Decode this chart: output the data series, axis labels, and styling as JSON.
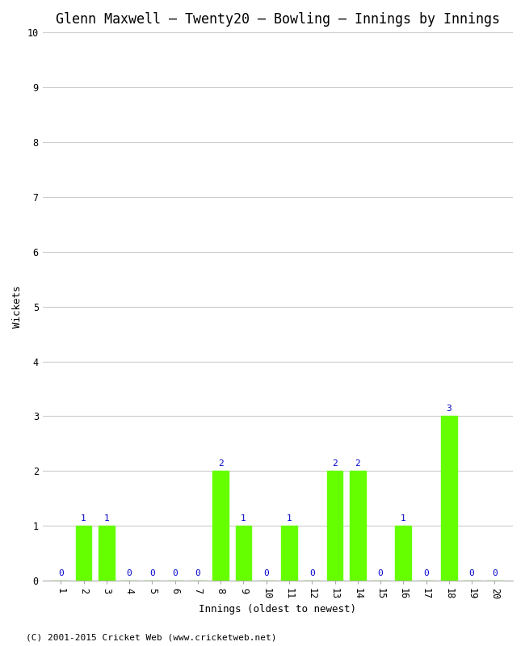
{
  "title": "Glenn Maxwell – Twenty20 – Bowling – Innings by Innings",
  "xlabel": "Innings (oldest to newest)",
  "ylabel": "Wickets",
  "footnote": "(C) 2001-2015 Cricket Web (www.cricketweb.net)",
  "innings": [
    1,
    2,
    3,
    4,
    5,
    6,
    7,
    8,
    9,
    10,
    11,
    12,
    13,
    14,
    15,
    16,
    17,
    18,
    19,
    20
  ],
  "wickets": [
    0,
    1,
    1,
    0,
    0,
    0,
    0,
    2,
    1,
    0,
    1,
    0,
    2,
    2,
    0,
    1,
    0,
    3,
    0,
    0
  ],
  "bar_color": "#66ff00",
  "bar_edge_color": "#66ff00",
  "label_color": "#0000cc",
  "background_color": "#ffffff",
  "grid_color": "#cccccc",
  "axis_color": "#aaaaaa",
  "title_color": "#000000",
  "ylim": [
    0,
    10
  ],
  "yticks": [
    0,
    1,
    2,
    3,
    4,
    5,
    6,
    7,
    8,
    9,
    10
  ],
  "title_fontsize": 12,
  "label_fontsize": 9,
  "tick_fontsize": 8.5,
  "annotation_fontsize": 8,
  "footnote_fontsize": 8
}
